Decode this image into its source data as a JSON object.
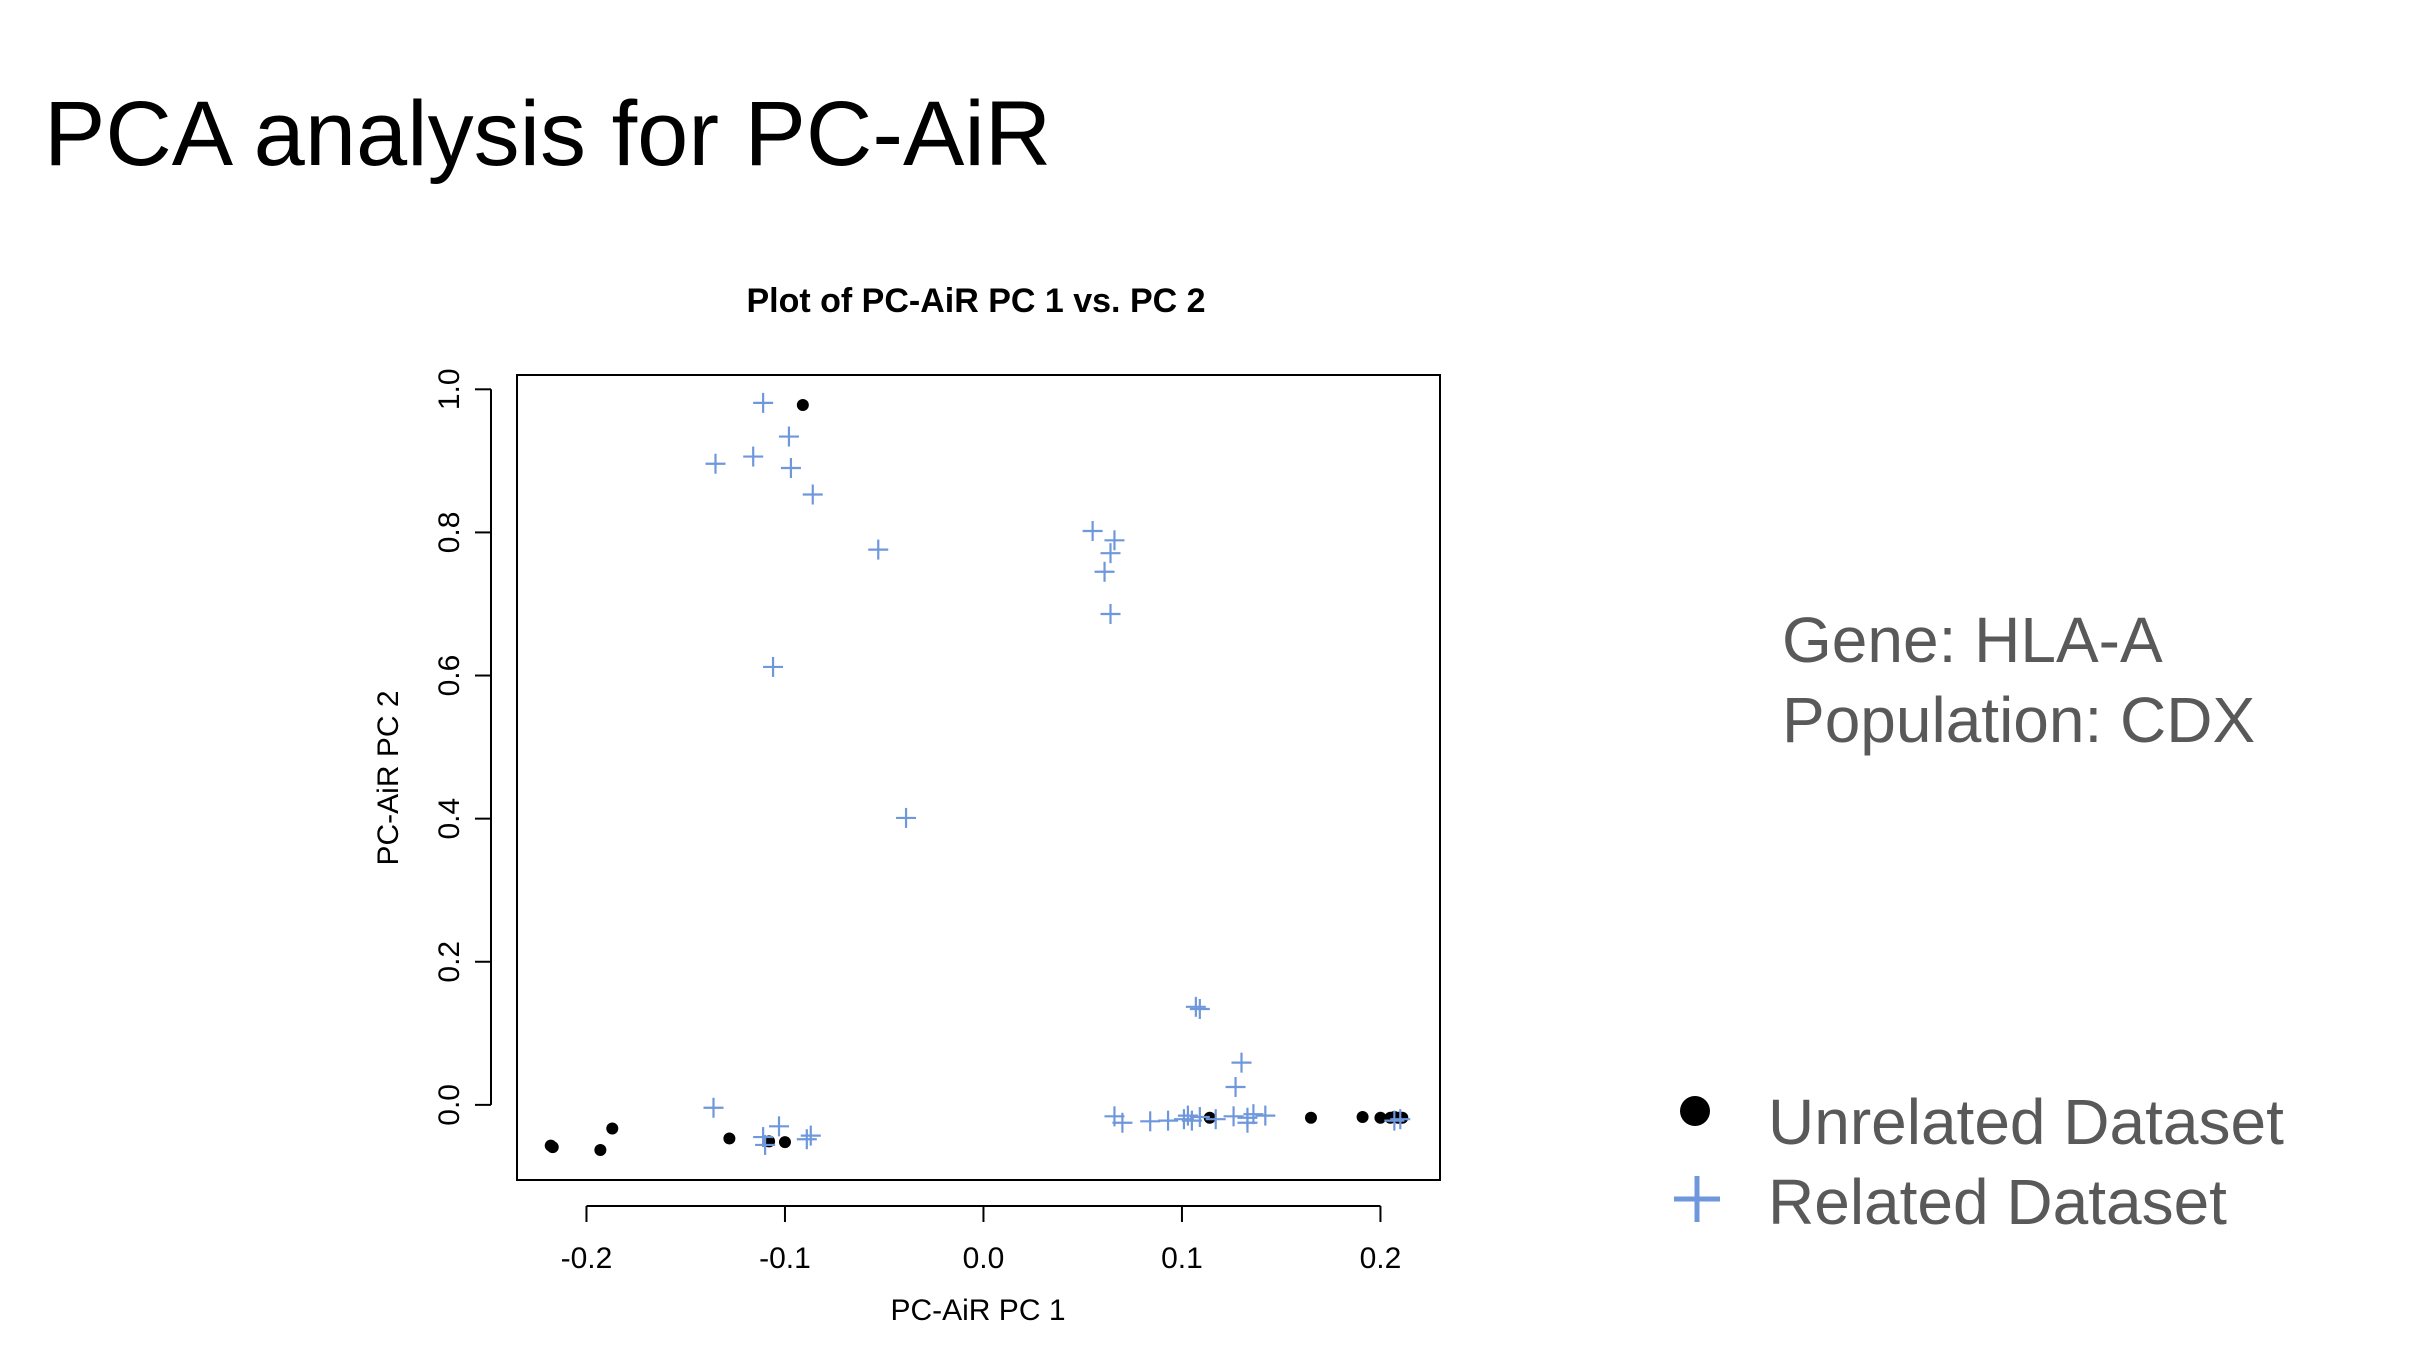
{
  "slide": {
    "title": "PCA analysis for PC-AiR",
    "gene_line": "Gene: HLA-A",
    "population_line": "Population: CDX"
  },
  "colors": {
    "unrelated": "#000000",
    "related": "#6f97dc",
    "axis": "#000000"
  },
  "chart_data": {
    "type": "scatter",
    "title": "Plot of PC-AiR PC 1 vs. PC 2",
    "xlabel": "PC-AiR PC 1",
    "ylabel": "PC-AiR PC 2",
    "xlim": [
      -0.235,
      0.23
    ],
    "ylim": [
      -0.105,
      1.02
    ],
    "xticks": [
      -0.2,
      -0.1,
      0.0,
      0.1,
      0.2
    ],
    "xtick_labels": [
      "-0.2",
      "-0.1",
      "0.0",
      "0.1",
      "0.2"
    ],
    "yticks": [
      0.0,
      0.2,
      0.4,
      0.6,
      0.8,
      1.0
    ],
    "ytick_labels": [
      "0.0",
      "0.2",
      "0.4",
      "0.6",
      "0.8",
      "1.0"
    ],
    "grid": false,
    "legend": "right",
    "series": [
      {
        "name": "Unrelated Dataset",
        "marker": "dot",
        "points": [
          [
            -0.218,
            -0.057
          ],
          [
            -0.217,
            -0.059
          ],
          [
            -0.193,
            -0.063
          ],
          [
            -0.187,
            -0.033
          ],
          [
            -0.128,
            -0.047
          ],
          [
            -0.108,
            -0.051
          ],
          [
            -0.1,
            -0.052
          ],
          [
            -0.091,
            0.978
          ],
          [
            0.114,
            -0.018
          ],
          [
            0.165,
            -0.018
          ],
          [
            0.191,
            -0.017
          ],
          [
            0.2,
            -0.018
          ],
          [
            0.205,
            -0.018
          ],
          [
            0.207,
            -0.017
          ],
          [
            0.209,
            -0.018
          ],
          [
            0.211,
            -0.018
          ]
        ]
      },
      {
        "name": "Related Dataset",
        "marker": "plus",
        "points": [
          [
            -0.111,
            0.981
          ],
          [
            -0.098,
            0.934
          ],
          [
            -0.116,
            0.906
          ],
          [
            -0.135,
            0.896
          ],
          [
            -0.097,
            0.89
          ],
          [
            -0.086,
            0.853
          ],
          [
            -0.053,
            0.776
          ],
          [
            -0.106,
            0.612
          ],
          [
            -0.039,
            0.401
          ],
          [
            0.055,
            0.802
          ],
          [
            0.066,
            0.789
          ],
          [
            0.064,
            0.771
          ],
          [
            0.061,
            0.745
          ],
          [
            0.064,
            0.686
          ],
          [
            -0.136,
            -0.004
          ],
          [
            -0.103,
            -0.03
          ],
          [
            -0.111,
            -0.045
          ],
          [
            -0.11,
            -0.056
          ],
          [
            -0.089,
            -0.048
          ],
          [
            -0.087,
            -0.043
          ],
          [
            0.066,
            -0.016
          ],
          [
            0.07,
            -0.025
          ],
          [
            0.084,
            -0.023
          ],
          [
            0.093,
            -0.022
          ],
          [
            0.101,
            -0.02
          ],
          [
            0.103,
            -0.015
          ],
          [
            0.105,
            -0.022
          ],
          [
            0.109,
            -0.017
          ],
          [
            0.117,
            -0.02
          ],
          [
            0.126,
            -0.016
          ],
          [
            0.133,
            -0.018
          ],
          [
            0.133,
            -0.025
          ],
          [
            0.136,
            -0.013
          ],
          [
            0.142,
            -0.015
          ],
          [
            0.127,
            0.025
          ],
          [
            0.13,
            0.059
          ],
          [
            0.107,
            0.137
          ],
          [
            0.109,
            0.134
          ],
          [
            0.207,
            -0.022
          ],
          [
            0.21,
            -0.02
          ]
        ]
      }
    ]
  }
}
